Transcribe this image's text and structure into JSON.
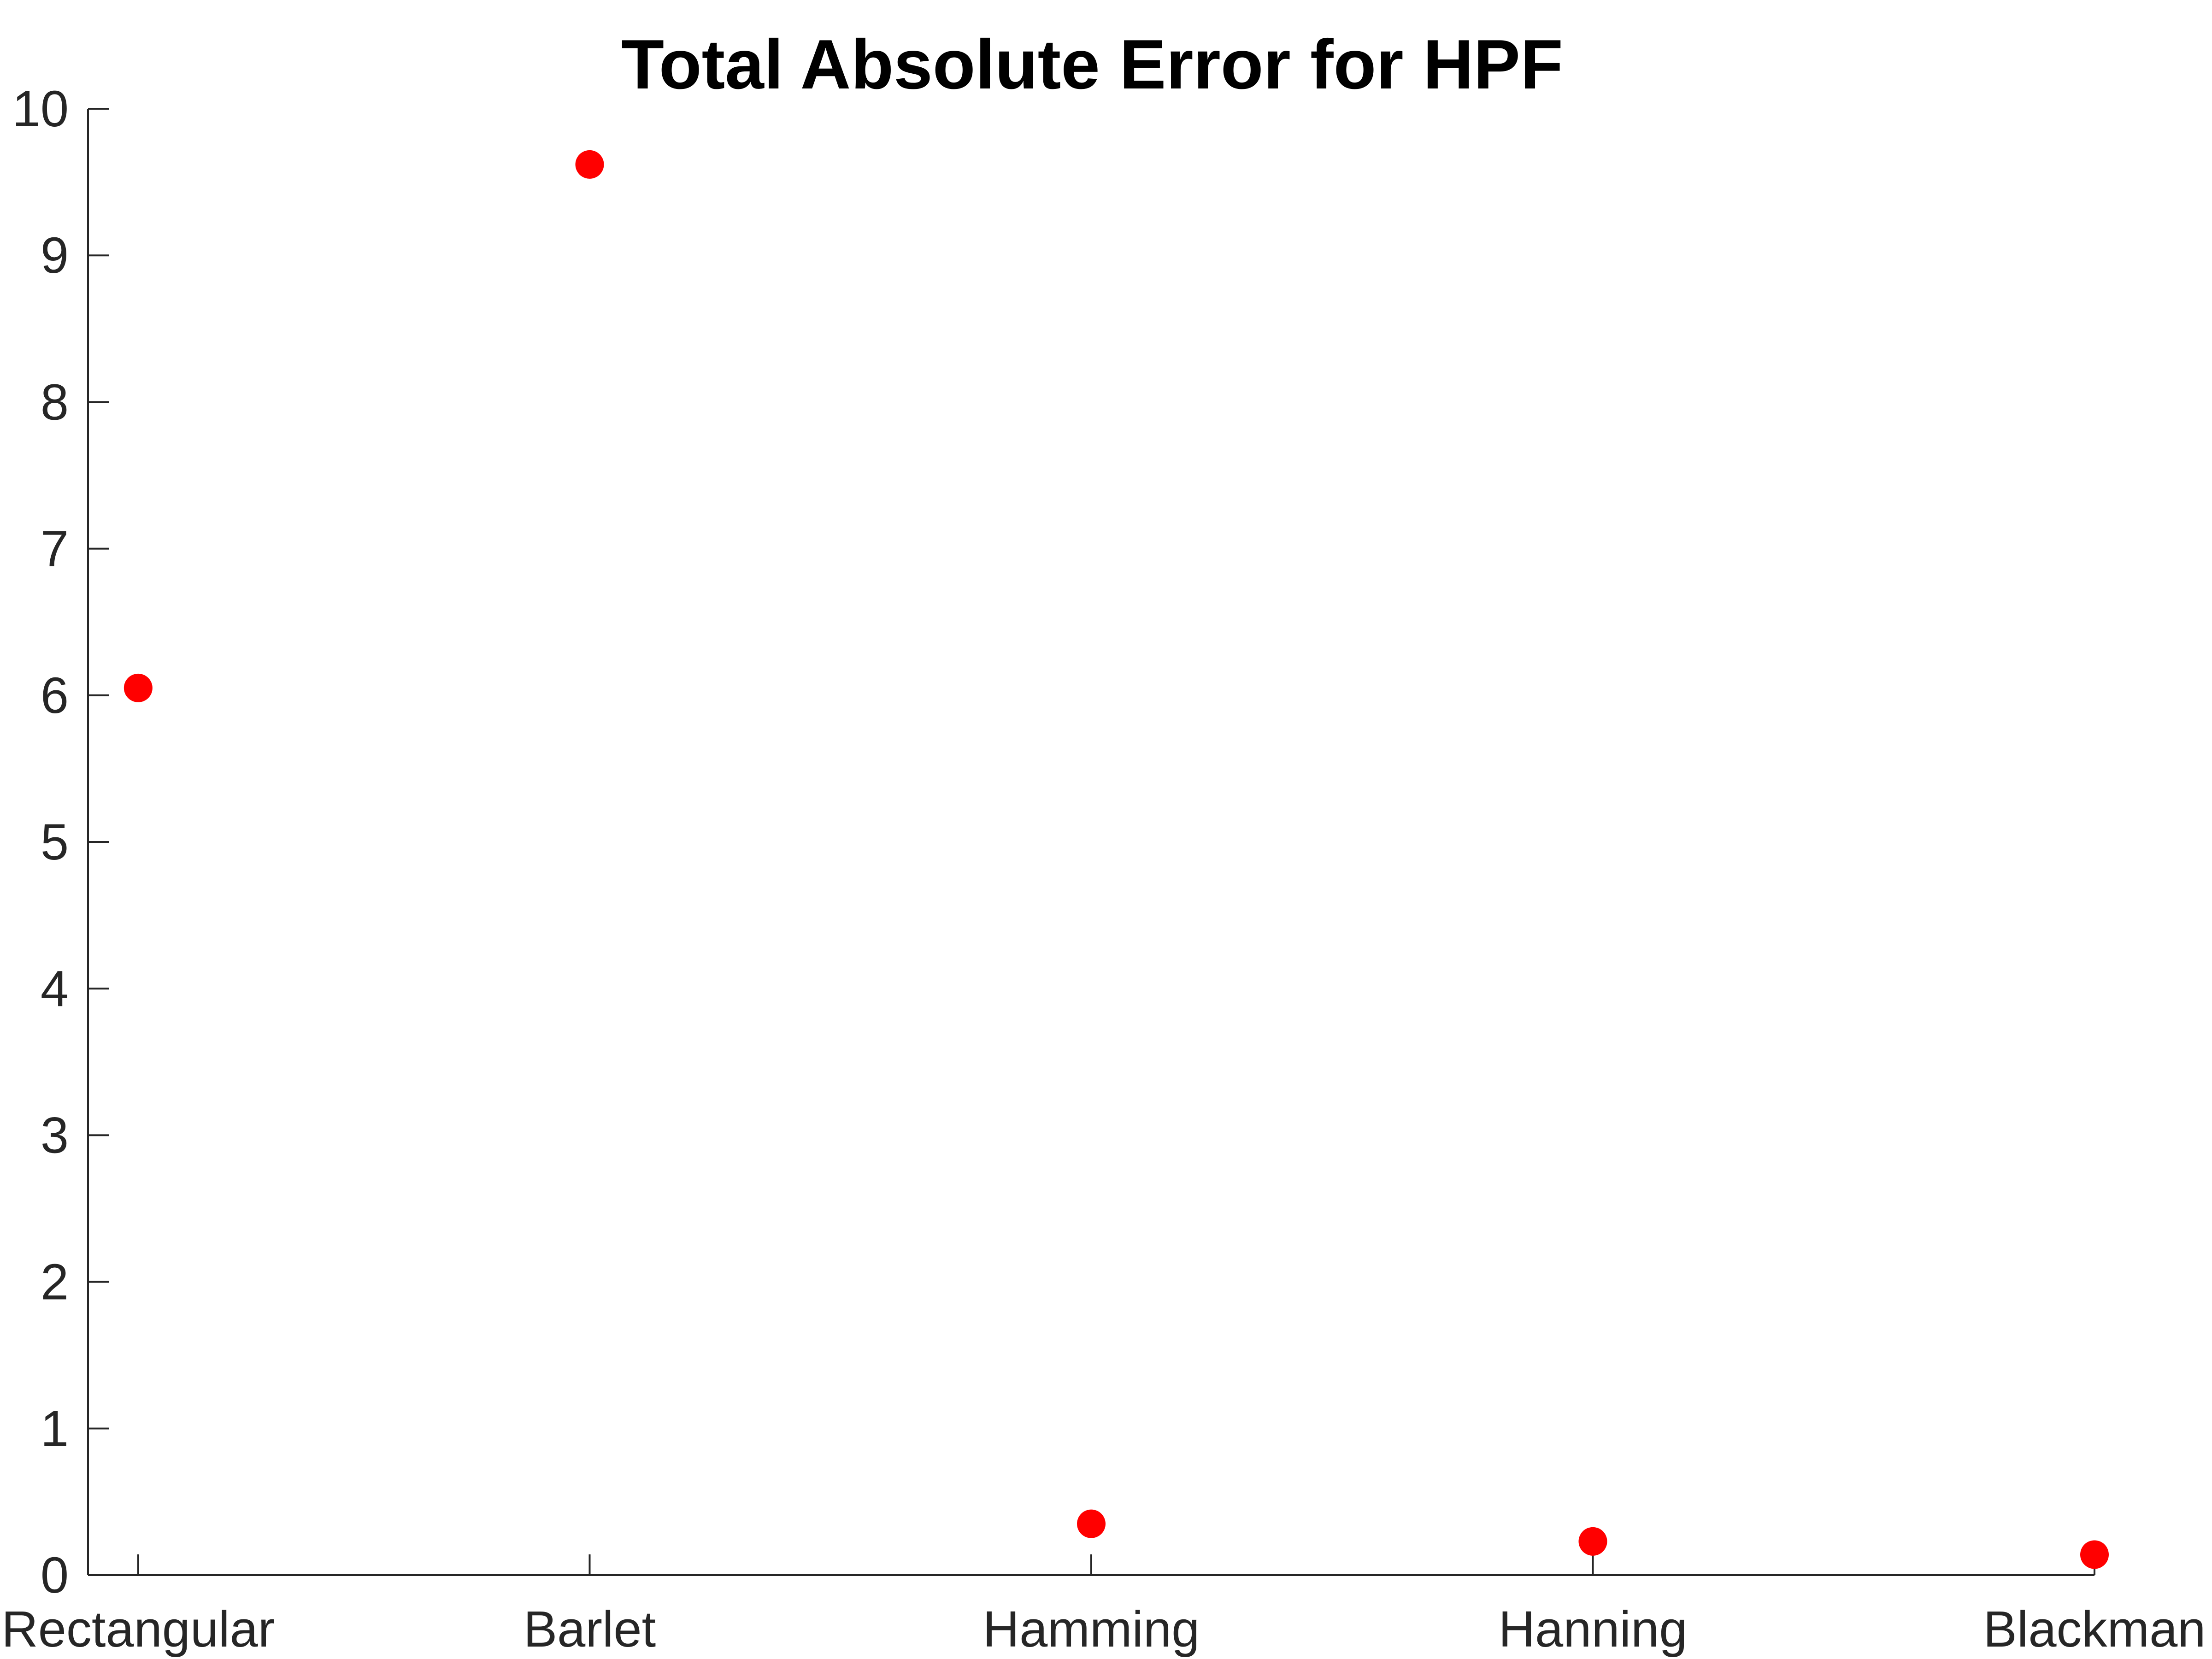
{
  "chart_data": {
    "type": "scatter",
    "title": "Total Absolute Error for HPF",
    "xlabel": "",
    "ylabel": "",
    "categories": [
      "Rectangular",
      "Barlet",
      "Hamming",
      "Hanning",
      "Blackman"
    ],
    "x": [
      1,
      1.9,
      2.9,
      3.9,
      4.9
    ],
    "values": [
      6.05,
      9.62,
      0.35,
      0.23,
      0.14
    ],
    "xlim": [
      0.9,
      4.9
    ],
    "ylim": [
      0,
      10
    ],
    "yticks": [
      0,
      1,
      2,
      3,
      4,
      5,
      6,
      7,
      8,
      9,
      10
    ],
    "marker": "filled-circle",
    "marker_color": "#ff0000",
    "grid": false,
    "legend": "none"
  },
  "colors": {
    "marker": "#ff0000",
    "axis": "#262626",
    "title": "#000000",
    "background": "#ffffff"
  }
}
